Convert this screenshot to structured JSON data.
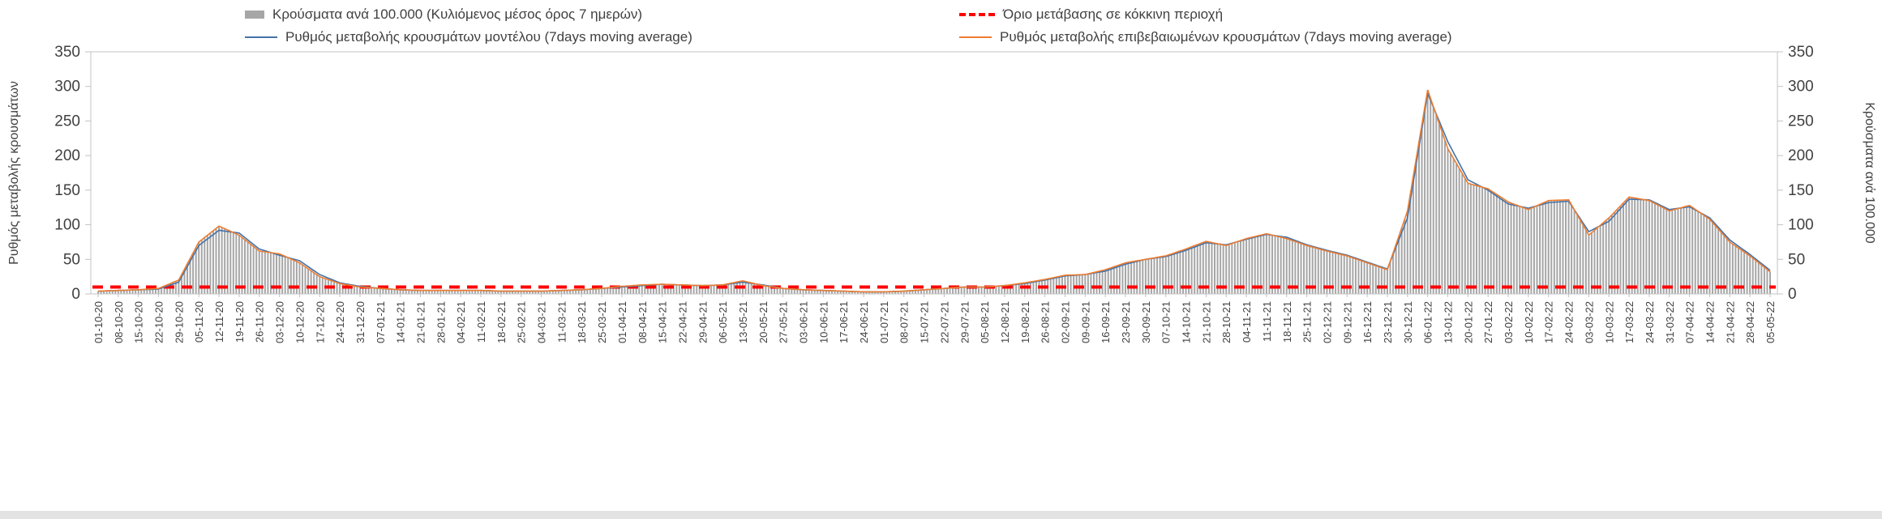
{
  "page": {
    "background": "#ffffff"
  },
  "chart_data": {
    "type": "bar+line",
    "title": "",
    "ylabel_left": "Ρυθμός μεταβολής κρουσμάτων",
    "ylabel_right": "Κρούσματα ανά 100.000",
    "ylim": [
      0,
      350
    ],
    "yticks": [
      0,
      50,
      100,
      150,
      200,
      250,
      300,
      350
    ],
    "grid": false,
    "legend_position": "top",
    "categories": [
      "01-10-20",
      "08-10-20",
      "15-10-20",
      "22-10-20",
      "29-10-20",
      "05-11-20",
      "12-11-20",
      "19-11-20",
      "26-11-20",
      "03-12-20",
      "10-12-20",
      "17-12-20",
      "24-12-20",
      "31-12-20",
      "07-01-21",
      "14-01-21",
      "21-01-21",
      "28-01-21",
      "04-02-21",
      "11-02-21",
      "18-02-21",
      "25-02-21",
      "04-03-21",
      "11-03-21",
      "18-03-21",
      "25-03-21",
      "01-04-21",
      "08-04-21",
      "15-04-21",
      "22-04-21",
      "29-04-21",
      "06-05-21",
      "13-05-21",
      "20-05-21",
      "27-05-21",
      "03-06-21",
      "10-06-21",
      "17-06-21",
      "24-06-21",
      "01-07-21",
      "08-07-21",
      "15-07-21",
      "22-07-21",
      "29-07-21",
      "05-08-21",
      "12-08-21",
      "19-08-21",
      "26-08-21",
      "02-09-21",
      "09-09-21",
      "16-09-21",
      "23-09-21",
      "30-09-21",
      "07-10-21",
      "14-10-21",
      "21-10-21",
      "28-10-21",
      "04-11-21",
      "11-11-21",
      "18-11-21",
      "25-11-21",
      "02-12-21",
      "09-12-21",
      "16-12-21",
      "23-12-21",
      "30-12-21",
      "06-01-22",
      "13-01-22",
      "20-01-22",
      "27-01-22",
      "03-02-22",
      "10-02-22",
      "17-02-22",
      "24-02-22",
      "03-03-22",
      "10-03-22",
      "17-03-22",
      "24-03-22",
      "31-03-22",
      "07-04-22",
      "14-04-22",
      "21-04-22",
      "28-04-22",
      "05-05-22"
    ],
    "series": [
      {
        "name": "Κρούσματα ανά 100.000 (Κυλιόμενος μέσος όρος 7 ημερών)",
        "type": "bar",
        "color": "#a6a6a6",
        "values": [
          4,
          5,
          6,
          8,
          20,
          75,
          98,
          85,
          62,
          58,
          45,
          25,
          15,
          10,
          8,
          6,
          5,
          5,
          5,
          5,
          4,
          4,
          4,
          5,
          6,
          8,
          11,
          13,
          14,
          13,
          12,
          13,
          19,
          12,
          8,
          6,
          5,
          4,
          3,
          3,
          4,
          6,
          8,
          10,
          10,
          12,
          16,
          21,
          27,
          28,
          35,
          45,
          50,
          55,
          65,
          76,
          70,
          80,
          87,
          80,
          70,
          62,
          55,
          45,
          35,
          120,
          295,
          210,
          160,
          152,
          133,
          122,
          135,
          136,
          85,
          110,
          140,
          135,
          120,
          128,
          108,
          75,
          55,
          32
        ]
      },
      {
        "name": "Ρυθμός μεταβολής κρουσμάτων μοντέλου (7days moving average)",
        "type": "line",
        "color": "#4472a8",
        "values": [
          4,
          5,
          6,
          7,
          17,
          70,
          92,
          88,
          65,
          56,
          48,
          28,
          16,
          11,
          8,
          6,
          5,
          5,
          5,
          5,
          4,
          4,
          4,
          5,
          6,
          8,
          10,
          12,
          14,
          13,
          12,
          13,
          17,
          13,
          8,
          6,
          5,
          4,
          3,
          3,
          4,
          6,
          8,
          10,
          10,
          12,
          15,
          20,
          26,
          28,
          33,
          43,
          50,
          54,
          63,
          74,
          71,
          79,
          86,
          82,
          71,
          63,
          56,
          46,
          36,
          110,
          290,
          220,
          165,
          150,
          130,
          124,
          132,
          134,
          90,
          105,
          137,
          136,
          122,
          126,
          110,
          78,
          57,
          34
        ]
      },
      {
        "name": "Ρυθμός μεταβολής επιβεβαιωμένων κρουσμάτων (7days moving average)",
        "type": "line",
        "color": "#ed7d31",
        "values": [
          4,
          5,
          6,
          8,
          20,
          75,
          98,
          85,
          62,
          58,
          45,
          25,
          15,
          10,
          8,
          6,
          5,
          5,
          5,
          5,
          4,
          4,
          4,
          5,
          6,
          8,
          11,
          13,
          14,
          13,
          12,
          13,
          19,
          12,
          8,
          6,
          5,
          4,
          3,
          3,
          4,
          6,
          8,
          10,
          10,
          12,
          16,
          21,
          27,
          28,
          35,
          45,
          50,
          55,
          65,
          76,
          70,
          80,
          87,
          80,
          70,
          62,
          55,
          45,
          35,
          120,
          295,
          210,
          160,
          152,
          133,
          122,
          135,
          136,
          85,
          110,
          140,
          135,
          120,
          128,
          108,
          75,
          55,
          32
        ]
      },
      {
        "name": "Όριο μετάβασης σε κόκκινη περιοχή",
        "type": "threshold",
        "color": "#ff0000",
        "value": 10
      }
    ]
  }
}
